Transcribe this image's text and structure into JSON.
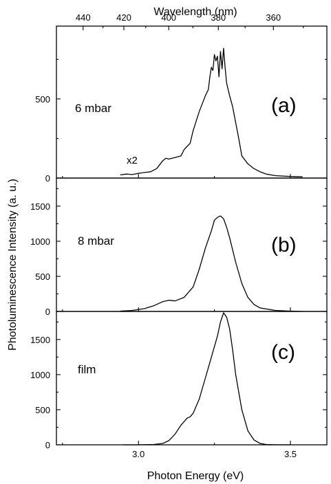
{
  "chart_data": {
    "type": "line",
    "xlabel": "Photon Energy (eV)",
    "ylabel": "Photoluminescence Intensity (a. u.)",
    "top_xlabel": "Wavelength (nm)",
    "xlim": [
      2.73,
      3.62
    ],
    "x_ticks": [
      3.0,
      3.5
    ],
    "x_tick_labels": [
      "3.0",
      "3.5"
    ],
    "top_ticks_nm": [
      440,
      420,
      400,
      380,
      360
    ],
    "top_tick_labels": [
      "440",
      "420",
      "400",
      "380",
      "360"
    ],
    "panels": [
      {
        "panel_label": "(a)",
        "sample_label": "6 mbar",
        "annotation": "x2",
        "ylim": [
          0,
          960
        ],
        "y_ticks": [
          0,
          500
        ],
        "y_tick_labels": [
          "0",
          "500"
        ],
        "x": [
          2.94,
          2.96,
          2.98,
          3.0,
          3.02,
          3.04,
          3.06,
          3.08,
          3.09,
          3.1,
          3.12,
          3.14,
          3.15,
          3.16,
          3.17,
          3.18,
          3.19,
          3.2,
          3.21,
          3.22,
          3.23,
          3.235,
          3.24,
          3.245,
          3.25,
          3.255,
          3.26,
          3.265,
          3.27,
          3.275,
          3.28,
          3.285,
          3.29,
          3.3,
          3.31,
          3.32,
          3.33,
          3.34,
          3.36,
          3.38,
          3.4,
          3.42,
          3.45,
          3.5,
          3.54
        ],
        "y": [
          20,
          25,
          22,
          30,
          35,
          40,
          60,
          110,
          125,
          120,
          130,
          140,
          180,
          200,
          220,
          300,
          360,
          420,
          470,
          520,
          560,
          640,
          700,
          680,
          780,
          740,
          770,
          640,
          800,
          690,
          820,
          700,
          600,
          520,
          450,
          350,
          250,
          140,
          90,
          60,
          40,
          25,
          15,
          10,
          8
        ]
      },
      {
        "panel_label": "(b)",
        "sample_label": "8 mbar",
        "ylim": [
          0,
          1900
        ],
        "y_ticks": [
          0,
          500,
          1000,
          1500
        ],
        "y_tick_labels": [
          "0",
          "500",
          "1000",
          "1500"
        ],
        "x": [
          2.94,
          2.98,
          3.02,
          3.05,
          3.08,
          3.1,
          3.12,
          3.15,
          3.18,
          3.2,
          3.22,
          3.24,
          3.25,
          3.26,
          3.27,
          3.28,
          3.29,
          3.3,
          3.32,
          3.34,
          3.36,
          3.38,
          3.4,
          3.45,
          3.5,
          3.54
        ],
        "y": [
          5,
          15,
          40,
          80,
          140,
          160,
          150,
          200,
          350,
          600,
          900,
          1150,
          1300,
          1340,
          1360,
          1320,
          1200,
          1050,
          700,
          400,
          200,
          100,
          50,
          15,
          5,
          0
        ]
      },
      {
        "panel_label": "(c)",
        "sample_label": "film",
        "ylim": [
          0,
          1900
        ],
        "y_ticks": [
          0,
          500,
          1000,
          1500
        ],
        "y_tick_labels": [
          "0",
          "500",
          "1000",
          "1500"
        ],
        "x": [
          2.95,
          3.0,
          3.05,
          3.08,
          3.1,
          3.12,
          3.14,
          3.16,
          3.17,
          3.18,
          3.2,
          3.22,
          3.24,
          3.26,
          3.27,
          3.28,
          3.29,
          3.3,
          3.31,
          3.32,
          3.34,
          3.36,
          3.38,
          3.4,
          3.42,
          3.46,
          3.5
        ],
        "y": [
          0,
          0,
          5,
          20,
          60,
          150,
          280,
          380,
          400,
          450,
          650,
          950,
          1250,
          1550,
          1750,
          1880,
          1820,
          1650,
          1350,
          1000,
          500,
          200,
          70,
          20,
          5,
          0,
          0
        ]
      }
    ]
  }
}
